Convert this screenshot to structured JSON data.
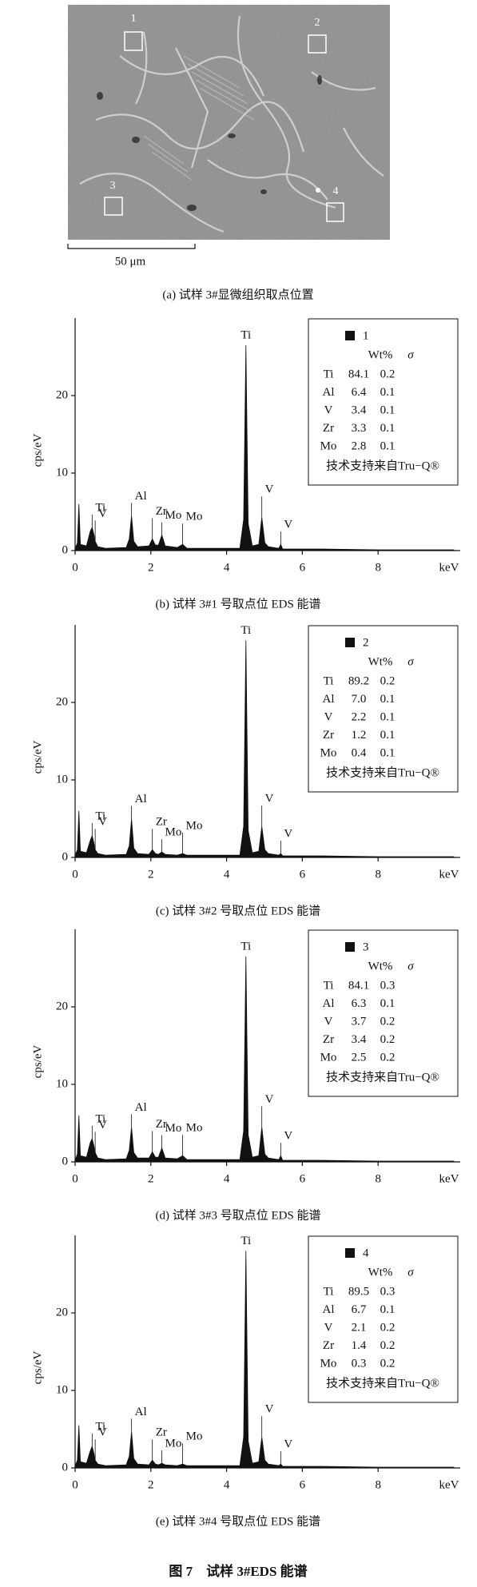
{
  "micrograph": {
    "labels": [
      "1",
      "2",
      "3",
      "4"
    ],
    "scale_bar": "50 μm",
    "caption": "(a)  试样 3#显微组织取点位置"
  },
  "chart_data": [
    {
      "type": "area",
      "caption": "(b)  试样 3#1 号取点位 EDS 能谱",
      "ylabel": "cps/eV",
      "xlabel": "keV",
      "xlim": [
        0,
        10
      ],
      "xticks": [
        0,
        2,
        4,
        6,
        8
      ],
      "ylim": [
        0,
        30
      ],
      "yticks": [
        0,
        10,
        20
      ],
      "x": [
        0,
        0.06,
        0.1,
        0.14,
        0.3,
        0.4,
        0.45,
        0.5,
        0.53,
        0.6,
        0.8,
        1.35,
        1.43,
        1.49,
        1.55,
        1.65,
        1.95,
        2.04,
        2.12,
        2.2,
        2.29,
        2.38,
        2.7,
        2.84,
        2.95,
        4.35,
        4.45,
        4.51,
        4.57,
        4.68,
        4.85,
        4.93,
        5.01,
        5.1,
        5.38,
        5.43,
        5.48,
        6.5,
        8,
        10
      ],
      "series": [
        {
          "name": "1",
          "color": "#111111",
          "values": [
            0.2,
            1,
            6,
            0.8,
            0.6,
            2.5,
            3,
            2,
            1.2,
            0.5,
            0.3,
            0.4,
            1.5,
            4.5,
            1.2,
            0.5,
            0.6,
            1.5,
            0.7,
            0.7,
            2,
            0.6,
            0.4,
            0.8,
            0.3,
            0.3,
            4,
            26.5,
            3.5,
            0.6,
            0.8,
            4.3,
            1,
            0.5,
            0.3,
            0.8,
            0.2,
            0.2,
            0.1,
            0.1
          ]
        }
      ],
      "annotations": [
        {
          "text": "Ti",
          "x": 0.45,
          "y": 3
        },
        {
          "text": "V",
          "x": 0.53,
          "y": 1.2
        },
        {
          "text": "Al",
          "x": 1.49,
          "y": 4.5
        },
        {
          "text": "Zr",
          "x": 2.04,
          "y": 1.5
        },
        {
          "text": "Mo",
          "x": 2.29,
          "y": 2
        },
        {
          "text": "Mo",
          "x": 2.84,
          "y": 0.8
        },
        {
          "text": "Ti",
          "x": 4.51,
          "y": 26.5
        },
        {
          "text": "V",
          "x": 4.93,
          "y": 4.3
        },
        {
          "text": "V",
          "x": 5.43,
          "y": 0.8
        }
      ],
      "table": {
        "header": [
          "Wt%",
          "σ"
        ],
        "rows": [
          [
            "Ti",
            "84.1",
            "0.2"
          ],
          [
            "Al",
            "6.4",
            "0.1"
          ],
          [
            "V",
            "3.4",
            "0.1"
          ],
          [
            "Zr",
            "3.3",
            "0.1"
          ],
          [
            "Mo",
            "2.8",
            "0.1"
          ]
        ],
        "footer": "技术支持来自Tru−Q®"
      }
    },
    {
      "type": "area",
      "caption": "(c)  试样 3#2 号取点位 EDS 能谱",
      "ylabel": "cps/eV",
      "xlabel": "keV",
      "xlim": [
        0,
        10
      ],
      "xticks": [
        0,
        2,
        4,
        6,
        8
      ],
      "ylim": [
        0,
        30
      ],
      "yticks": [
        0,
        10,
        20
      ],
      "x": [
        0,
        0.06,
        0.1,
        0.14,
        0.3,
        0.4,
        0.45,
        0.5,
        0.53,
        0.6,
        0.8,
        1.35,
        1.43,
        1.49,
        1.55,
        1.65,
        1.95,
        2.04,
        2.12,
        2.2,
        2.29,
        2.38,
        2.7,
        2.84,
        2.95,
        4.35,
        4.45,
        4.51,
        4.57,
        4.68,
        4.85,
        4.93,
        5.01,
        5.1,
        5.38,
        5.43,
        5.48,
        6.5,
        8,
        10
      ],
      "series": [
        {
          "name": "2",
          "color": "#111111",
          "values": [
            0.2,
            1,
            6,
            0.8,
            0.6,
            2.2,
            2.8,
            1.8,
            1,
            0.5,
            0.3,
            0.4,
            1.5,
            5,
            1.2,
            0.5,
            0.4,
            1,
            0.5,
            0.4,
            0.7,
            0.4,
            0.3,
            0.5,
            0.3,
            0.3,
            4,
            28,
            3.5,
            0.6,
            0.8,
            4,
            1,
            0.5,
            0.3,
            0.5,
            0.2,
            0.2,
            0.1,
            0.1
          ]
        }
      ],
      "annotations": [
        {
          "text": "Ti",
          "x": 0.45,
          "y": 2.8
        },
        {
          "text": "V",
          "x": 0.53,
          "y": 1
        },
        {
          "text": "Al",
          "x": 1.49,
          "y": 5
        },
        {
          "text": "Zr",
          "x": 2.04,
          "y": 1
        },
        {
          "text": "Mo",
          "x": 2.29,
          "y": 0.7
        },
        {
          "text": "Mo",
          "x": 2.84,
          "y": 0.5
        },
        {
          "text": "Ti",
          "x": 4.51,
          "y": 28
        },
        {
          "text": "V",
          "x": 4.93,
          "y": 4
        },
        {
          "text": "V",
          "x": 5.43,
          "y": 0.5
        }
      ],
      "table": {
        "header": [
          "Wt%",
          "σ"
        ],
        "rows": [
          [
            "Ti",
            "89.2",
            "0.2"
          ],
          [
            "Al",
            "7.0",
            "0.1"
          ],
          [
            "V",
            "2.2",
            "0.1"
          ],
          [
            "Zr",
            "1.2",
            "0.1"
          ],
          [
            "Mo",
            "0.4",
            "0.1"
          ]
        ],
        "footer": "技术支持来自Tru−Q®"
      }
    },
    {
      "type": "area",
      "caption": "(d)  试样 3#3 号取点位 EDS 能谱",
      "ylabel": "cps/eV",
      "xlabel": "keV",
      "xlim": [
        0,
        10
      ],
      "xticks": [
        0,
        2,
        4,
        6,
        8
      ],
      "ylim": [
        0,
        30
      ],
      "yticks": [
        0,
        10,
        20
      ],
      "x": [
        0,
        0.06,
        0.1,
        0.14,
        0.3,
        0.4,
        0.45,
        0.5,
        0.53,
        0.6,
        0.8,
        1.35,
        1.43,
        1.49,
        1.55,
        1.65,
        1.95,
        2.04,
        2.12,
        2.2,
        2.29,
        2.38,
        2.7,
        2.84,
        2.95,
        4.35,
        4.45,
        4.51,
        4.57,
        4.68,
        4.85,
        4.93,
        5.01,
        5.1,
        5.38,
        5.43,
        5.48,
        6.5,
        8,
        10
      ],
      "series": [
        {
          "name": "3",
          "color": "#111111",
          "values": [
            0.2,
            1,
            6,
            0.8,
            0.6,
            2.5,
            3,
            2,
            1.2,
            0.5,
            0.3,
            0.4,
            1.5,
            4.5,
            1.2,
            0.5,
            0.5,
            1.3,
            0.6,
            0.6,
            1.8,
            0.5,
            0.4,
            0.8,
            0.3,
            0.3,
            4,
            26.5,
            3.5,
            0.6,
            0.8,
            4.5,
            1,
            0.5,
            0.3,
            0.8,
            0.2,
            0.2,
            0.1,
            0.1
          ]
        }
      ],
      "annotations": [
        {
          "text": "Ti",
          "x": 0.45,
          "y": 3
        },
        {
          "text": "V",
          "x": 0.53,
          "y": 1.2
        },
        {
          "text": "Al",
          "x": 1.49,
          "y": 4.5
        },
        {
          "text": "Zr",
          "x": 2.04,
          "y": 1.3
        },
        {
          "text": "Mo",
          "x": 2.29,
          "y": 1.8
        },
        {
          "text": "Mo",
          "x": 2.84,
          "y": 0.8
        },
        {
          "text": "Ti",
          "x": 4.51,
          "y": 26.5
        },
        {
          "text": "V",
          "x": 4.93,
          "y": 4.5
        },
        {
          "text": "V",
          "x": 5.43,
          "y": 0.8
        }
      ],
      "table": {
        "header": [
          "Wt%",
          "σ"
        ],
        "rows": [
          [
            "Ti",
            "84.1",
            "0.3"
          ],
          [
            "Al",
            "6.3",
            "0.1"
          ],
          [
            "V",
            "3.7",
            "0.2"
          ],
          [
            "Zr",
            "3.4",
            "0.2"
          ],
          [
            "Mo",
            "2.5",
            "0.2"
          ]
        ],
        "footer": "技术支持来自Tru−Q®"
      }
    },
    {
      "type": "area",
      "caption": "(e)  试样 3#4 号取点位 EDS 能谱",
      "ylabel": "cps/eV",
      "xlabel": "keV",
      "xlim": [
        0,
        10
      ],
      "xticks": [
        0,
        2,
        4,
        6,
        8
      ],
      "ylim": [
        0,
        30
      ],
      "yticks": [
        0,
        10,
        20
      ],
      "x": [
        0,
        0.06,
        0.1,
        0.14,
        0.3,
        0.4,
        0.45,
        0.5,
        0.53,
        0.6,
        0.8,
        1.35,
        1.43,
        1.49,
        1.55,
        1.65,
        1.95,
        2.04,
        2.12,
        2.2,
        2.29,
        2.38,
        2.7,
        2.84,
        2.95,
        4.35,
        4.45,
        4.51,
        4.57,
        4.68,
        4.85,
        4.93,
        5.01,
        5.1,
        5.38,
        5.43,
        5.48,
        6.5,
        8,
        10
      ],
      "series": [
        {
          "name": "4",
          "color": "#111111",
          "values": [
            0.2,
            1,
            5.5,
            0.8,
            0.6,
            2.2,
            2.8,
            1.8,
            1,
            0.5,
            0.3,
            0.4,
            1.5,
            4.7,
            1.2,
            0.5,
            0.4,
            1,
            0.5,
            0.4,
            0.6,
            0.4,
            0.3,
            0.5,
            0.3,
            0.3,
            4,
            28,
            3.5,
            0.6,
            0.8,
            4,
            1,
            0.5,
            0.3,
            0.5,
            0.2,
            0.2,
            0.1,
            0.1
          ]
        }
      ],
      "annotations": [
        {
          "text": "Ti",
          "x": 0.45,
          "y": 2.8
        },
        {
          "text": "V",
          "x": 0.53,
          "y": 1
        },
        {
          "text": "Al",
          "x": 1.49,
          "y": 4.7
        },
        {
          "text": "Zr",
          "x": 2.04,
          "y": 1
        },
        {
          "text": "Mo",
          "x": 2.29,
          "y": 0.6
        },
        {
          "text": "Mo",
          "x": 2.84,
          "y": 0.5
        },
        {
          "text": "Ti",
          "x": 4.51,
          "y": 28
        },
        {
          "text": "V",
          "x": 4.93,
          "y": 4
        },
        {
          "text": "V",
          "x": 5.43,
          "y": 0.5
        }
      ],
      "table": {
        "header": [
          "Wt%",
          "σ"
        ],
        "rows": [
          [
            "Ti",
            "89.5",
            "0.3"
          ],
          [
            "Al",
            "6.7",
            "0.1"
          ],
          [
            "V",
            "2.1",
            "0.2"
          ],
          [
            "Zr",
            "1.4",
            "0.2"
          ],
          [
            "Mo",
            "0.3",
            "0.2"
          ]
        ],
        "footer": "技术支持来自Tru−Q®"
      }
    }
  ],
  "figure_caption": "图 7　试样 3#EDS 能谱"
}
